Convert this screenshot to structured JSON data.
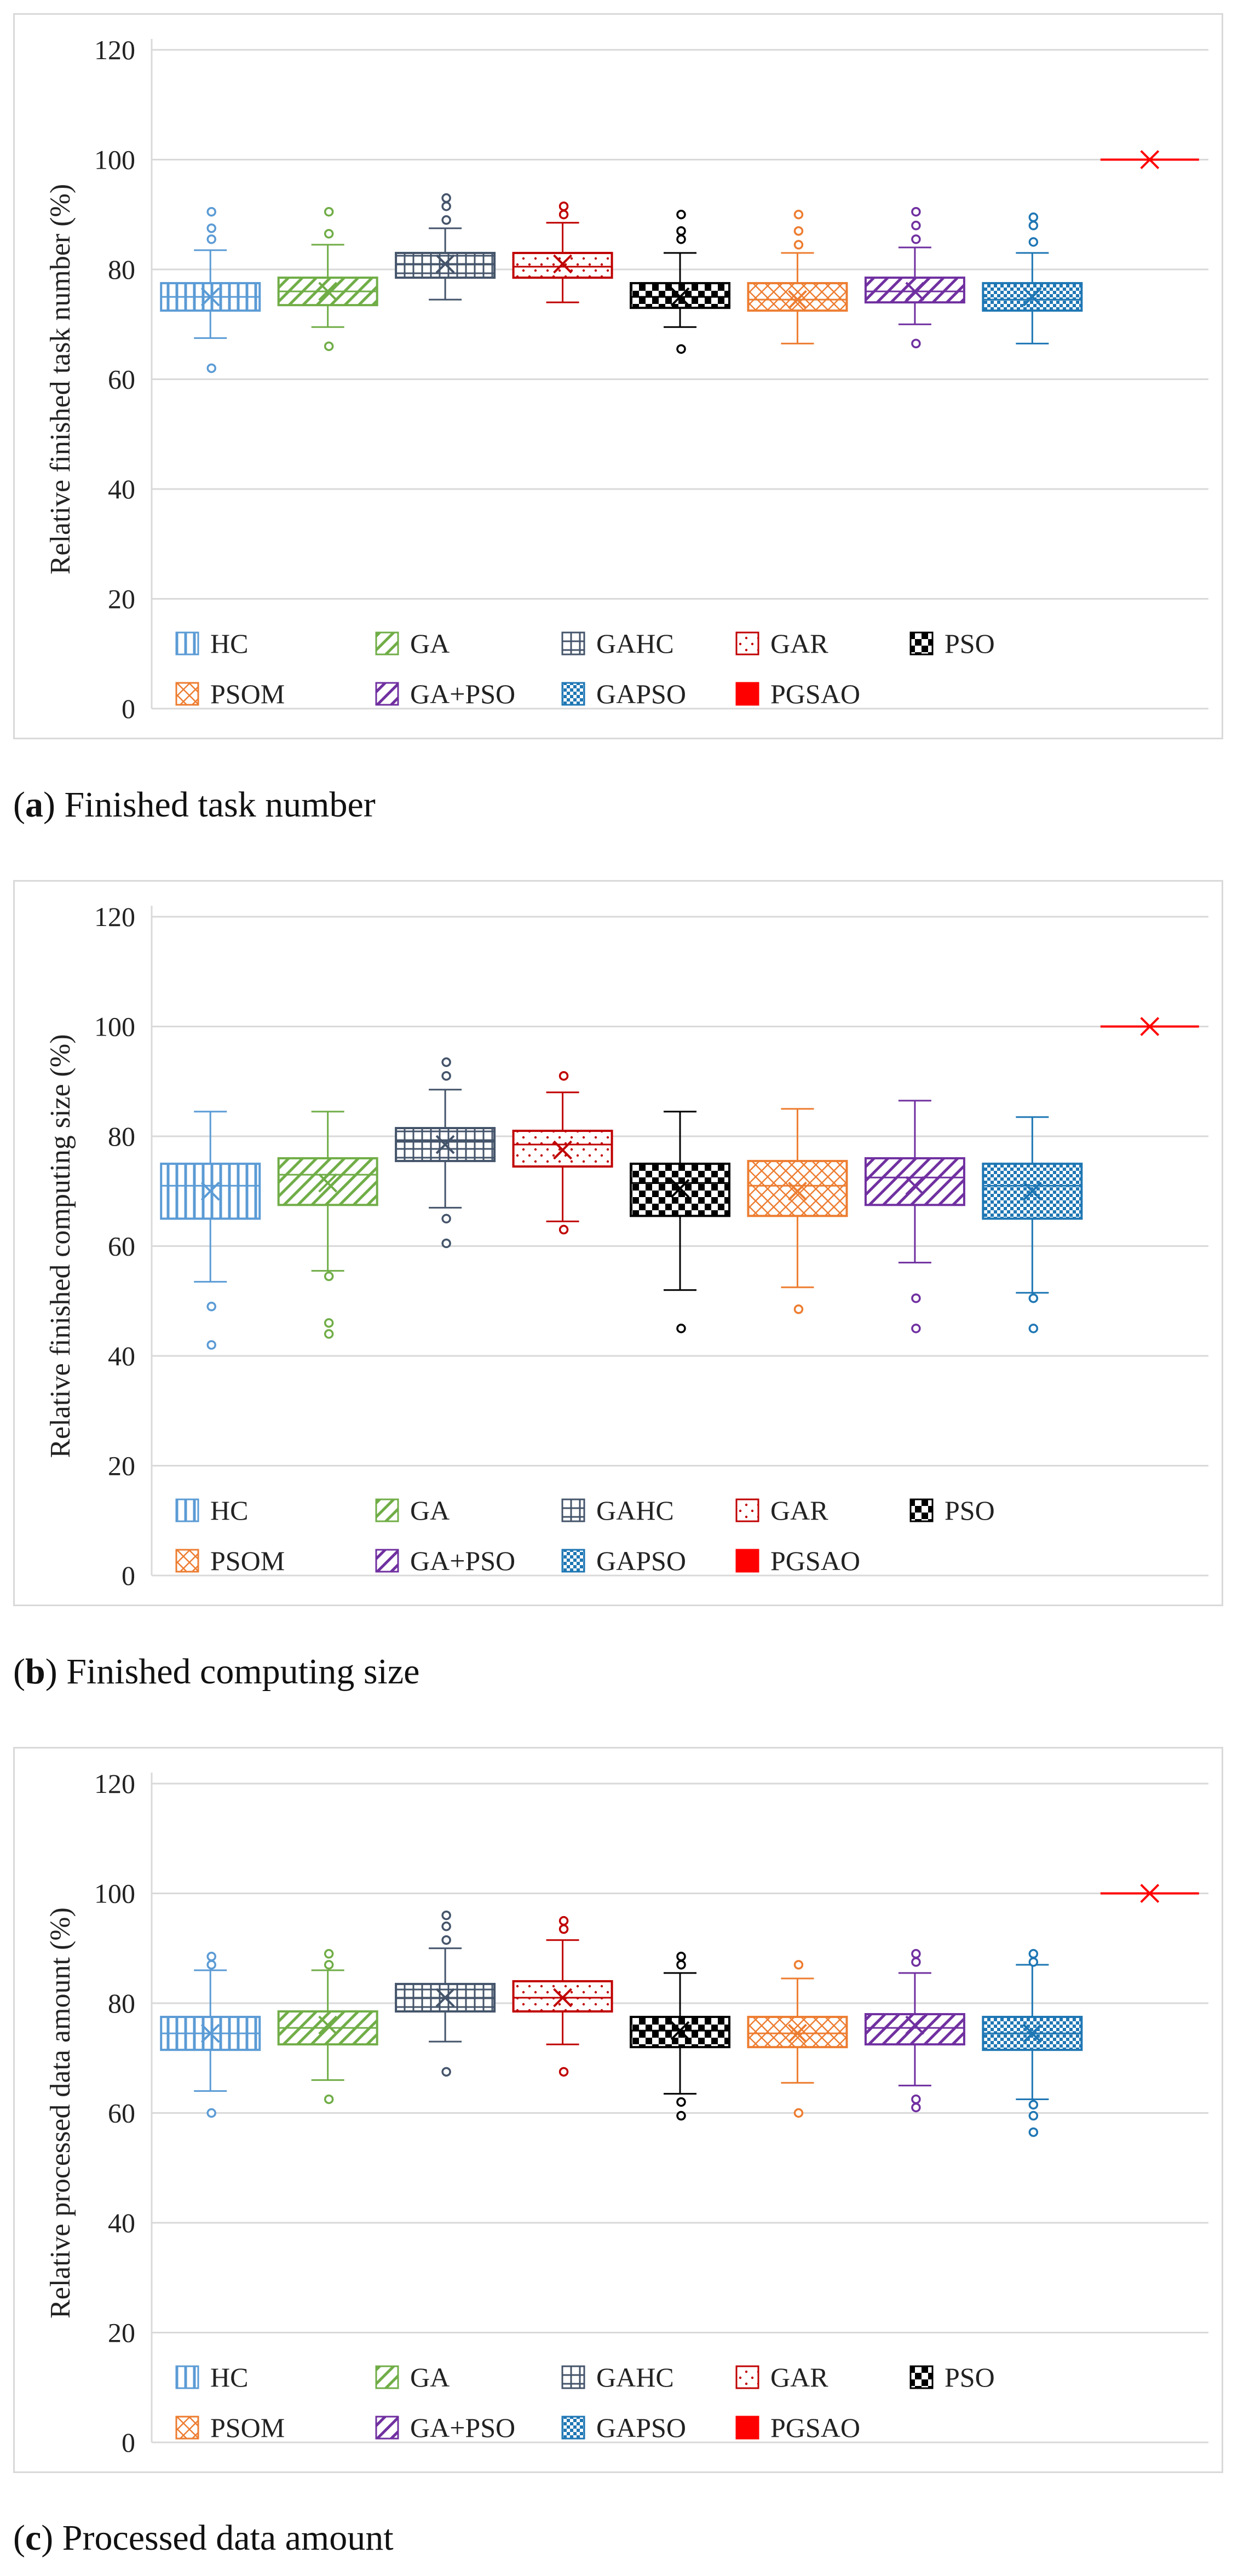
{
  "legend_labels": [
    "HC",
    "GA",
    "GAHC",
    "GAR",
    "PSO",
    "PSOM",
    "GA+PSO",
    "GAPSO",
    "PGSAO"
  ],
  "series_colors": [
    "#5b9bd5",
    "#70ad47",
    "#44546a",
    "#c00000",
    "#000000",
    "#ed7d31",
    "#7030a0",
    "#1f77b4",
    "#ff0000"
  ],
  "chart_data": [
    {
      "type": "box",
      "id": "a",
      "caption": {
        "letter": "a",
        "text": "Finished task number"
      },
      "ylabel": "Relative finished task number (%)",
      "ylim": [
        0,
        120
      ],
      "yticks": [
        0,
        20,
        40,
        60,
        80,
        100,
        120
      ],
      "grid": true,
      "legend_position": "bottom-inside",
      "boxes": [
        {
          "name": "HC",
          "min": 67.5,
          "q1": 72.5,
          "median": 75,
          "q3": 77.5,
          "max": 83.5,
          "mean": 75,
          "outliers": [
            62,
            85.5,
            87.5,
            90.5
          ]
        },
        {
          "name": "GA",
          "min": 69.5,
          "q1": 73.5,
          "median": 76,
          "q3": 78.5,
          "max": 84.5,
          "mean": 76,
          "outliers": [
            66,
            86.5,
            90.5
          ]
        },
        {
          "name": "GAHC",
          "min": 74.5,
          "q1": 78.5,
          "median": 81,
          "q3": 83,
          "max": 87.5,
          "mean": 81,
          "outliers": [
            89,
            91.5,
            93
          ]
        },
        {
          "name": "GAR",
          "min": 74,
          "q1": 78.5,
          "median": 80.5,
          "q3": 83,
          "max": 88.5,
          "mean": 81,
          "outliers": [
            90,
            91.5
          ]
        },
        {
          "name": "PSO",
          "min": 69.5,
          "q1": 73,
          "median": 75,
          "q3": 77.5,
          "max": 83,
          "mean": 75,
          "outliers": [
            65.5,
            85.5,
            87,
            90
          ]
        },
        {
          "name": "PSOM",
          "min": 66.5,
          "q1": 72.5,
          "median": 74.5,
          "q3": 77.5,
          "max": 83,
          "mean": 74.5,
          "outliers": [
            84.5,
            87,
            90
          ]
        },
        {
          "name": "GA+PSO",
          "min": 70,
          "q1": 74,
          "median": 76,
          "q3": 78.5,
          "max": 84,
          "mean": 76,
          "outliers": [
            66.5,
            85.5,
            88,
            90.5
          ]
        },
        {
          "name": "GAPSO",
          "min": 66.5,
          "q1": 72.5,
          "median": 74.5,
          "q3": 77.5,
          "max": 83,
          "mean": 75,
          "outliers": [
            85,
            88,
            89.5
          ]
        },
        {
          "name": "PGSAO",
          "min": 100,
          "q1": 100,
          "median": 100,
          "q3": 100,
          "max": 100,
          "mean": 100,
          "outliers": []
        }
      ]
    },
    {
      "type": "box",
      "id": "b",
      "caption": {
        "letter": "b",
        "text": "Finished computing size"
      },
      "ylabel": "Relative finished computing size (%)",
      "ylim": [
        0,
        120
      ],
      "yticks": [
        0,
        20,
        40,
        60,
        80,
        100,
        120
      ],
      "grid": true,
      "legend_position": "bottom-inside",
      "boxes": [
        {
          "name": "HC",
          "min": 53.5,
          "q1": 65,
          "median": 71,
          "q3": 75,
          "max": 84.5,
          "mean": 70,
          "outliers": [
            42,
            49
          ]
        },
        {
          "name": "GA",
          "min": 55.5,
          "q1": 67.5,
          "median": 73,
          "q3": 76,
          "max": 84.5,
          "mean": 71.5,
          "outliers": [
            44,
            46,
            54.5
          ]
        },
        {
          "name": "GAHC",
          "min": 67,
          "q1": 75.5,
          "median": 79,
          "q3": 81.5,
          "max": 88.5,
          "mean": 78.5,
          "outliers": [
            60.5,
            65,
            91,
            93.5
          ]
        },
        {
          "name": "GAR",
          "min": 64.5,
          "q1": 74.5,
          "median": 78.5,
          "q3": 81,
          "max": 88,
          "mean": 77.5,
          "outliers": [
            63,
            91
          ]
        },
        {
          "name": "PSO",
          "min": 52,
          "q1": 65.5,
          "median": 71.5,
          "q3": 75,
          "max": 84.5,
          "mean": 70.5,
          "outliers": [
            45
          ]
        },
        {
          "name": "PSOM",
          "min": 52.5,
          "q1": 65.5,
          "median": 71,
          "q3": 75.5,
          "max": 85,
          "mean": 70,
          "outliers": [
            48.5
          ]
        },
        {
          "name": "GA+PSO",
          "min": 57,
          "q1": 67.5,
          "median": 72.5,
          "q3": 76,
          "max": 86.5,
          "mean": 71,
          "outliers": [
            45,
            50.5
          ]
        },
        {
          "name": "GAPSO",
          "min": 51.5,
          "q1": 65,
          "median": 71,
          "q3": 75,
          "max": 83.5,
          "mean": 70,
          "outliers": [
            45,
            50.5
          ]
        },
        {
          "name": "PGSAO",
          "min": 100,
          "q1": 100,
          "median": 100,
          "q3": 100,
          "max": 100,
          "mean": 100,
          "outliers": []
        }
      ]
    },
    {
      "type": "box",
      "id": "c",
      "caption": {
        "letter": "c",
        "text": "Processed data amount"
      },
      "ylabel": "Relative processed data amount  (%)",
      "ylim": [
        0,
        120
      ],
      "yticks": [
        0,
        20,
        40,
        60,
        80,
        100,
        120
      ],
      "grid": true,
      "legend_position": "bottom-inside",
      "boxes": [
        {
          "name": "HC",
          "min": 64,
          "q1": 71.5,
          "median": 74.5,
          "q3": 77.5,
          "max": 86,
          "mean": 74.5,
          "outliers": [
            60,
            87,
            88.5
          ]
        },
        {
          "name": "GA",
          "min": 66,
          "q1": 72.5,
          "median": 75.5,
          "q3": 78.5,
          "max": 86,
          "mean": 76,
          "outliers": [
            62.5,
            87,
            89
          ]
        },
        {
          "name": "GAHC",
          "min": 73,
          "q1": 78.5,
          "median": 81,
          "q3": 83.5,
          "max": 90,
          "mean": 81,
          "outliers": [
            67.5,
            91.5,
            94,
            96
          ]
        },
        {
          "name": "GAR",
          "min": 72.5,
          "q1": 78.5,
          "median": 81,
          "q3": 84,
          "max": 91.5,
          "mean": 81,
          "outliers": [
            67.5,
            93.5,
            95
          ]
        },
        {
          "name": "PSO",
          "min": 63.5,
          "q1": 72,
          "median": 75,
          "q3": 77.5,
          "max": 85.5,
          "mean": 75,
          "outliers": [
            59.5,
            62,
            87,
            88.5
          ]
        },
        {
          "name": "PSOM",
          "min": 65.5,
          "q1": 72,
          "median": 74.5,
          "q3": 77.5,
          "max": 84.5,
          "mean": 74.5,
          "outliers": [
            60,
            87
          ]
        },
        {
          "name": "GA+PSO",
          "min": 65,
          "q1": 72.5,
          "median": 75.5,
          "q3": 78,
          "max": 85.5,
          "mean": 76,
          "outliers": [
            61,
            62.5,
            87.5,
            89
          ]
        },
        {
          "name": "GAPSO",
          "min": 62.5,
          "q1": 71.5,
          "median": 74.5,
          "q3": 77.5,
          "max": 87,
          "mean": 74.5,
          "outliers": [
            56.5,
            59.5,
            61.5,
            87.5,
            89
          ]
        },
        {
          "name": "PGSAO",
          "min": 100,
          "q1": 100,
          "median": 100,
          "q3": 100,
          "max": 100,
          "mean": 100,
          "outliers": []
        }
      ]
    }
  ]
}
